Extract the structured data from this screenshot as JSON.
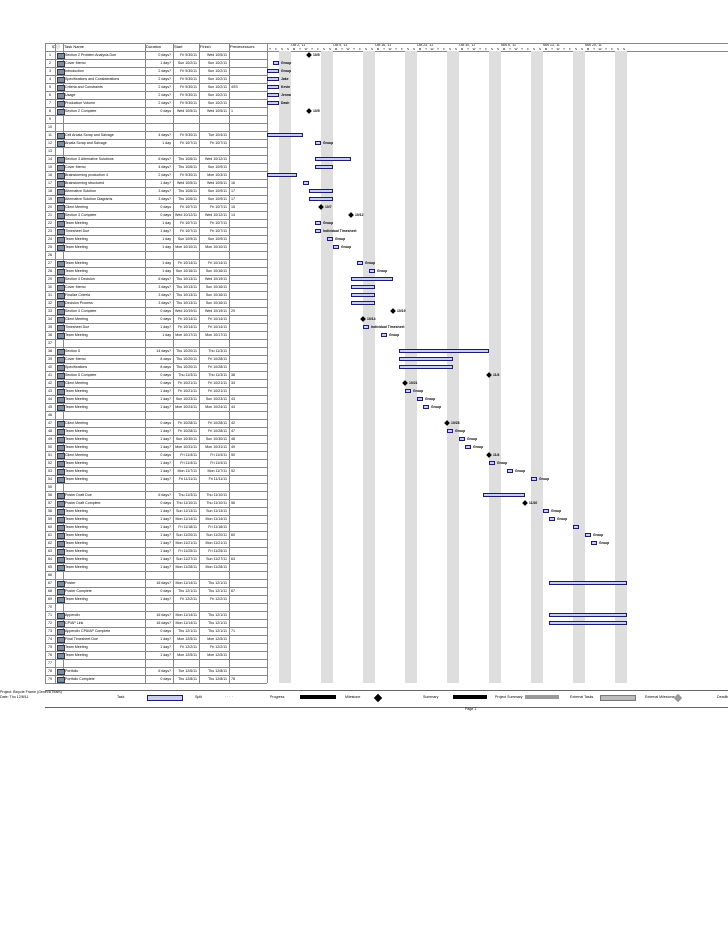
{
  "header": {
    "cols": [
      "ID",
      "Task Name",
      "Duration",
      "Start",
      "Finish",
      "Predecessors"
    ],
    "weeks": [
      "Oct 2, '11",
      "Oct 9, '11",
      "Oct 16, '11",
      "Oct 23, '11",
      "Oct 30, '11",
      "Nov 6, '11",
      "Nov 13, '11",
      "Nov 20, '11"
    ],
    "days": [
      "T",
      "F",
      "S",
      "S",
      "M",
      "T",
      "W",
      "T",
      "F",
      "S",
      "S",
      "M",
      "T",
      "W",
      "T",
      "F",
      "S",
      "S",
      "M",
      "T",
      "W",
      "T",
      "F",
      "S",
      "S",
      "M",
      "T",
      "W",
      "T",
      "F",
      "S",
      "S",
      "M",
      "T",
      "W",
      "T",
      "F",
      "S",
      "S",
      "M",
      "T",
      "W",
      "T",
      "F",
      "S",
      "S",
      "M",
      "T",
      "W",
      "T",
      "F",
      "S",
      "S",
      "M",
      "T",
      "W",
      "T",
      "F",
      "S",
      "S"
    ]
  },
  "rows": [
    {
      "id": "1",
      "name": "Section 2 Problem Analysis Due",
      "dur": "0 days?",
      "start": "Fri 9/30/11",
      "finish": "Wed 10/5/11",
      "pred": ""
    },
    {
      "id": "2",
      "name": "Cover Memo",
      "dur": "1 day?",
      "start": "Sun 10/2/11",
      "finish": "Sun 10/2/11",
      "pred": ""
    },
    {
      "id": "3",
      "name": "Introduction",
      "dur": "2 days?",
      "start": "Fri 9/30/11",
      "finish": "Sun 10/2/11",
      "pred": ""
    },
    {
      "id": "4",
      "name": "Specifications and Considerations",
      "dur": "2 days?",
      "start": "Fri 9/30/11",
      "finish": "Sun 10/2/11",
      "pred": ""
    },
    {
      "id": "5",
      "name": "Criteria and Constraints",
      "dur": "2 days?",
      "start": "Fri 9/30/11",
      "finish": "Sun 10/2/11",
      "pred": "4SS"
    },
    {
      "id": "6",
      "name": "Usage",
      "dur": "2 days?",
      "start": "Fri 9/30/11",
      "finish": "Sun 10/2/11",
      "pred": ""
    },
    {
      "id": "7",
      "name": "Production Volume",
      "dur": "2 days?",
      "start": "Fri 9/30/11",
      "finish": "Sun 10/2/11",
      "pred": ""
    },
    {
      "id": "8",
      "name": "Section 2 Complete",
      "dur": "0 days",
      "start": "Wed 10/5/11",
      "finish": "Wed 10/5/11",
      "pred": "1"
    },
    {
      "id": "9",
      "name": "",
      "dur": "",
      "start": "",
      "finish": "",
      "pred": ""
    },
    {
      "id": "10",
      "name": "",
      "dur": "",
      "start": "",
      "finish": "",
      "pred": ""
    },
    {
      "id": "11",
      "name": "Cell Arcata Scrap and Salvage",
      "dur": "4 days?",
      "start": "Fri 9/30/11",
      "finish": "Tue 10/4/11",
      "pred": ""
    },
    {
      "id": "12",
      "name": "Arcata Scrap and Salvage",
      "dur": "1 day",
      "start": "Fri 10/7/11",
      "finish": "Fri 10/7/11",
      "pred": ""
    },
    {
      "id": "13",
      "name": "",
      "dur": "",
      "start": "",
      "finish": "",
      "pred": ""
    },
    {
      "id": "14",
      "name": "Section 3 Alternative Solutions",
      "dur": "6 days?",
      "start": "Thu 10/6/11",
      "finish": "Wed 10/12/11",
      "pred": ""
    },
    {
      "id": "15",
      "name": "Cover Memo",
      "dur": "4 days?",
      "start": "Thu 10/6/11",
      "finish": "Sun 10/9/11",
      "pred": ""
    },
    {
      "id": "16",
      "name": "Brainstorming production 4",
      "dur": "2 days?",
      "start": "Fri 9/30/11",
      "finish": "Mon 10/3/11",
      "pred": ""
    },
    {
      "id": "17",
      "name": "Brainstorming structured",
      "dur": "1 day?",
      "start": "Wed 10/5/11",
      "finish": "Wed 10/5/11",
      "pred": "16"
    },
    {
      "id": "18",
      "name": "Alternative Solution",
      "dur": "3 days?",
      "start": "Thu 10/6/11",
      "finish": "Sun 10/9/11",
      "pred": "17"
    },
    {
      "id": "19",
      "name": "Alternative Solution Diagrams",
      "dur": "3 days?",
      "start": "Thu 10/6/11",
      "finish": "Sun 10/9/11",
      "pred": "17"
    },
    {
      "id": "20",
      "name": "Client Meeting",
      "dur": "0 days",
      "start": "Fri 10/7/11",
      "finish": "Fri 10/7/11",
      "pred": "15"
    },
    {
      "id": "21",
      "name": "Section 3 Complete",
      "dur": "0 days",
      "start": "Wed 10/12/11",
      "finish": "Wed 10/12/11",
      "pred": "14"
    },
    {
      "id": "22",
      "name": "Team Meeting",
      "dur": "1 day",
      "start": "Fri 10/7/11",
      "finish": "Fri 10/7/11",
      "pred": ""
    },
    {
      "id": "23",
      "name": "Timesheet Due",
      "dur": "1 day?",
      "start": "Fri 10/7/11",
      "finish": "Fri 10/7/11",
      "pred": ""
    },
    {
      "id": "24",
      "name": "Team Meeting",
      "dur": "1 day",
      "start": "Sun 10/9/11",
      "finish": "Sun 10/9/11",
      "pred": ""
    },
    {
      "id": "25",
      "name": "Team Meeting",
      "dur": "1 day",
      "start": "Mon 10/10/11",
      "finish": "Mon 10/10/11",
      "pred": ""
    },
    {
      "id": "26",
      "name": "",
      "dur": "",
      "start": "",
      "finish": "",
      "pred": ""
    },
    {
      "id": "27",
      "name": "Team Meeting",
      "dur": "1 day",
      "start": "Fri 10/14/11",
      "finish": "Fri 10/14/11",
      "pred": ""
    },
    {
      "id": "28",
      "name": "Team Meeting",
      "dur": "1 day",
      "start": "Sun 10/16/11",
      "finish": "Sun 10/16/11",
      "pred": ""
    },
    {
      "id": "29",
      "name": "Section 4 Decision",
      "dur": "6 days?",
      "start": "Thu 10/13/11",
      "finish": "Wed 10/19/11",
      "pred": ""
    },
    {
      "id": "30",
      "name": "Cover Memo",
      "dur": "3 days?",
      "start": "Thu 10/13/11",
      "finish": "Sun 10/16/11",
      "pred": ""
    },
    {
      "id": "31",
      "name": "Finalize Criteria",
      "dur": "3 days?",
      "start": "Thu 10/13/11",
      "finish": "Sun 10/16/11",
      "pred": ""
    },
    {
      "id": "32",
      "name": "Decision Process",
      "dur": "3 days?",
      "start": "Thu 10/13/11",
      "finish": "Sun 10/16/11",
      "pred": ""
    },
    {
      "id": "33",
      "name": "Section 4 Complete",
      "dur": "0 days",
      "start": "Wed 10/19/11",
      "finish": "Wed 10/19/11",
      "pred": "29"
    },
    {
      "id": "34",
      "name": "Client Meeting",
      "dur": "0 days",
      "start": "Fri 10/14/11",
      "finish": "Fri 10/14/11",
      "pred": ""
    },
    {
      "id": "35",
      "name": "Timesheet Due",
      "dur": "1 day?",
      "start": "Fri 10/14/11",
      "finish": "Fri 10/14/11",
      "pred": ""
    },
    {
      "id": "36",
      "name": "Team Meeting",
      "dur": "1 day",
      "start": "Mon 10/17/11",
      "finish": "Mon 10/17/11",
      "pred": ""
    },
    {
      "id": "37",
      "name": "",
      "dur": "",
      "start": "",
      "finish": "",
      "pred": ""
    },
    {
      "id": "38",
      "name": "Section 5",
      "dur": "14 days?",
      "start": "Thu 10/20/11",
      "finish": "Thu 11/3/11",
      "pred": ""
    },
    {
      "id": "39",
      "name": "Cover Memo",
      "dur": "8 days",
      "start": "Thu 10/20/11",
      "finish": "Fri 10/28/11",
      "pred": ""
    },
    {
      "id": "40",
      "name": "Specifications",
      "dur": "8 days",
      "start": "Thu 10/20/11",
      "finish": "Fri 10/28/11",
      "pred": ""
    },
    {
      "id": "41",
      "name": "Section 5 Complete",
      "dur": "0 days",
      "start": "Thu 11/3/11",
      "finish": "Thu 11/3/11",
      "pred": "38"
    },
    {
      "id": "42",
      "name": "Client Meeting",
      "dur": "0 days",
      "start": "Fri 10/21/11",
      "finish": "Fri 10/21/11",
      "pred": "34"
    },
    {
      "id": "43",
      "name": "Team Meeting",
      "dur": "1 day?",
      "start": "Fri 10/21/11",
      "finish": "Fri 10/21/11",
      "pred": ""
    },
    {
      "id": "44",
      "name": "Team Meeting",
      "dur": "1 day?",
      "start": "Sun 10/23/11",
      "finish": "Sun 10/23/11",
      "pred": "43"
    },
    {
      "id": "45",
      "name": "Team Meeting",
      "dur": "1 day?",
      "start": "Mon 10/24/11",
      "finish": "Mon 10/24/11",
      "pred": "44"
    },
    {
      "id": "46",
      "name": "",
      "dur": "",
      "start": "",
      "finish": "",
      "pred": ""
    },
    {
      "id": "47",
      "name": "Client Meeting",
      "dur": "0 days",
      "start": "Fri 10/28/11",
      "finish": "Fri 10/28/11",
      "pred": "42"
    },
    {
      "id": "48",
      "name": "Team Meeting",
      "dur": "1 day?",
      "start": "Fri 10/28/11",
      "finish": "Fri 10/28/11",
      "pred": "47"
    },
    {
      "id": "49",
      "name": "Team Meeting",
      "dur": "1 day?",
      "start": "Sun 10/30/11",
      "finish": "Sun 10/30/11",
      "pred": "48"
    },
    {
      "id": "50",
      "name": "Team Meeting",
      "dur": "1 day?",
      "start": "Mon 10/31/11",
      "finish": "Mon 10/31/11",
      "pred": "49"
    },
    {
      "id": "51",
      "name": "Client Meeting",
      "dur": "0 days",
      "start": "Fri 11/4/11",
      "finish": "Fri 11/4/11",
      "pred": "50"
    },
    {
      "id": "52",
      "name": "Team Meeting",
      "dur": "1 day?",
      "start": "Fri 11/4/11",
      "finish": "Fri 11/4/11",
      "pred": ""
    },
    {
      "id": "53",
      "name": "Team Meeting",
      "dur": "1 day?",
      "start": "Mon 11/7/11",
      "finish": "Mon 11/7/11",
      "pred": "52"
    },
    {
      "id": "54",
      "name": "Team Meeting",
      "dur": "1 day?",
      "start": "Fri 11/11/11",
      "finish": "Fri 11/11/11",
      "pred": ""
    },
    {
      "id": "55",
      "name": "",
      "dur": "",
      "start": "",
      "finish": "",
      "pred": ""
    },
    {
      "id": "56",
      "name": "Poster Draft Due",
      "dur": "6 days?",
      "start": "Thu 11/3/11",
      "finish": "Thu 11/10/11",
      "pred": ""
    },
    {
      "id": "57",
      "name": "Poster Draft Complete",
      "dur": "0 days",
      "start": "Thu 11/10/11",
      "finish": "Thu 11/10/11",
      "pred": "56"
    },
    {
      "id": "58",
      "name": "Team Meeting",
      "dur": "1 day?",
      "start": "Sun 11/13/11",
      "finish": "Sun 11/13/11",
      "pred": ""
    },
    {
      "id": "59",
      "name": "Team Meeting",
      "dur": "1 day?",
      "start": "Mon 11/14/11",
      "finish": "Mon 11/14/11",
      "pred": ""
    },
    {
      "id": "60",
      "name": "Team Meeting",
      "dur": "1 day?",
      "start": "Fri 11/18/11",
      "finish": "Fri 11/18/11",
      "pred": ""
    },
    {
      "id": "61",
      "name": "Team Meeting",
      "dur": "1 day?",
      "start": "Sun 11/20/11",
      "finish": "Sun 11/20/11",
      "pred": "60"
    },
    {
      "id": "62",
      "name": "Team Meeting",
      "dur": "1 day?",
      "start": "Mon 11/21/11",
      "finish": "Mon 11/21/11",
      "pred": ""
    },
    {
      "id": "63",
      "name": "Team Meeting",
      "dur": "1 day?",
      "start": "Fri 11/25/11",
      "finish": "Fri 11/25/11",
      "pred": ""
    },
    {
      "id": "64",
      "name": "Team Meeting",
      "dur": "1 day?",
      "start": "Sun 11/27/11",
      "finish": "Sun 11/27/11",
      "pred": "63"
    },
    {
      "id": "65",
      "name": "Team Meeting",
      "dur": "1 day?",
      "start": "Mon 11/28/11",
      "finish": "Mon 11/28/11",
      "pred": ""
    },
    {
      "id": "66",
      "name": "",
      "dur": "",
      "start": "",
      "finish": "",
      "pred": ""
    },
    {
      "id": "67",
      "name": "Poster",
      "dur": "16 days?",
      "start": "Mon 11/14/11",
      "finish": "Thu 12/1/11",
      "pred": ""
    },
    {
      "id": "68",
      "name": "Poster Complete",
      "dur": "0 days",
      "start": "Thu 12/1/11",
      "finish": "Thu 12/1/11",
      "pred": "67"
    },
    {
      "id": "69",
      "name": "Team Meeting",
      "dur": "1 day?",
      "start": "Fri 12/2/11",
      "finish": "Fri 12/2/11",
      "pred": ""
    },
    {
      "id": "70",
      "name": "",
      "dur": "",
      "start": "",
      "finish": "",
      "pred": ""
    },
    {
      "id": "71",
      "name": "Appendix",
      "dur": "16 days?",
      "start": "Mon 11/14/11",
      "finish": "Thu 12/1/11",
      "pred": ""
    },
    {
      "id": "72",
      "name": "CP/AP Link",
      "dur": "16 days?",
      "start": "Mon 11/14/11",
      "finish": "Thu 12/1/11",
      "pred": ""
    },
    {
      "id": "73",
      "name": "Appendix CPA/AP Complete",
      "dur": "0 days",
      "start": "Thu 12/1/11",
      "finish": "Thu 12/1/11",
      "pred": "71"
    },
    {
      "id": "74",
      "name": "Final Timesheet Due",
      "dur": "1 day?",
      "start": "Mon 12/5/11",
      "finish": "Mon 12/5/11",
      "pred": ""
    },
    {
      "id": "75",
      "name": "Team Meeting",
      "dur": "1 day?",
      "start": "Fri 12/2/11",
      "finish": "Fri 12/2/11",
      "pred": ""
    },
    {
      "id": "76",
      "name": "Team Meeting",
      "dur": "1 day?",
      "start": "Mon 12/5/11",
      "finish": "Mon 12/5/11",
      "pred": ""
    },
    {
      "id": "77",
      "name": "",
      "dur": "",
      "start": "",
      "finish": "",
      "pred": ""
    },
    {
      "id": "78",
      "name": "Portfolio",
      "dur": "6 days?",
      "start": "Tue 12/6/11",
      "finish": "Thu 12/8/11",
      "pred": ""
    },
    {
      "id": "79",
      "name": "Portfolio Complete",
      "dur": "0 days",
      "start": "Thu 12/8/11",
      "finish": "Thu 12/8/11",
      "pred": "78"
    }
  ],
  "gantt": [
    {
      "row": 0,
      "type": "ms",
      "day": 7,
      "label": "10/5"
    },
    {
      "row": 1,
      "type": "bar",
      "s": 1,
      "e": 2,
      "label": "Group"
    },
    {
      "row": 2,
      "type": "bar",
      "s": 0,
      "e": 2,
      "label": "Group"
    },
    {
      "row": 3,
      "type": "bar",
      "s": 0,
      "e": 2,
      "label": "Jake"
    },
    {
      "row": 4,
      "type": "bar",
      "s": 0,
      "e": 2,
      "label": "Kevin"
    },
    {
      "row": 5,
      "type": "bar",
      "s": 0,
      "e": 2,
      "label": "Jenna"
    },
    {
      "row": 6,
      "type": "bar",
      "s": 0,
      "e": 2,
      "label": "Dash"
    },
    {
      "row": 7,
      "type": "ms",
      "day": 7,
      "label": "10/5"
    },
    {
      "row": 10,
      "type": "bar",
      "s": 0,
      "e": 6,
      "label": ""
    },
    {
      "row": 11,
      "type": "bar",
      "s": 8,
      "e": 9,
      "label": "Group"
    },
    {
      "row": 13,
      "type": "bar",
      "s": 8,
      "e": 14,
      "label": ""
    },
    {
      "row": 14,
      "type": "bar",
      "s": 8,
      "e": 11,
      "label": ""
    },
    {
      "row": 15,
      "type": "bar",
      "s": 0,
      "e": 5,
      "label": ""
    },
    {
      "row": 16,
      "type": "bar",
      "s": 6,
      "e": 7,
      "label": ""
    },
    {
      "row": 17,
      "type": "bar",
      "s": 7,
      "e": 11,
      "label": ""
    },
    {
      "row": 18,
      "type": "bar",
      "s": 7,
      "e": 11,
      "label": ""
    },
    {
      "row": 19,
      "type": "ms",
      "day": 9,
      "label": "10/7"
    },
    {
      "row": 20,
      "type": "ms",
      "day": 14,
      "label": "10/12"
    },
    {
      "row": 21,
      "type": "bar",
      "s": 8,
      "e": 9,
      "label": "Group"
    },
    {
      "row": 22,
      "type": "bar",
      "s": 8,
      "e": 9,
      "label": "Individual Timesheet"
    },
    {
      "row": 23,
      "type": "bar",
      "s": 10,
      "e": 11,
      "label": "Group"
    },
    {
      "row": 24,
      "type": "bar",
      "s": 11,
      "e": 12,
      "label": "Group"
    },
    {
      "row": 26,
      "type": "bar",
      "s": 15,
      "e": 16,
      "label": "Group"
    },
    {
      "row": 27,
      "type": "bar",
      "s": 17,
      "e": 18,
      "label": "Group"
    },
    {
      "row": 28,
      "type": "bar",
      "s": 14,
      "e": 21,
      "label": ""
    },
    {
      "row": 29,
      "type": "bar",
      "s": 14,
      "e": 18,
      "label": ""
    },
    {
      "row": 30,
      "type": "bar",
      "s": 14,
      "e": 18,
      "label": ""
    },
    {
      "row": 31,
      "type": "bar",
      "s": 14,
      "e": 18,
      "label": ""
    },
    {
      "row": 32,
      "type": "ms",
      "day": 21,
      "label": "10/19"
    },
    {
      "row": 33,
      "type": "ms",
      "day": 16,
      "label": "10/14"
    },
    {
      "row": 34,
      "type": "bar",
      "s": 16,
      "e": 17,
      "label": "Individual Timesheet"
    },
    {
      "row": 35,
      "type": "bar",
      "s": 19,
      "e": 20,
      "label": "Group"
    },
    {
      "row": 37,
      "type": "bar",
      "s": 22,
      "e": 37,
      "label": ""
    },
    {
      "row": 38,
      "type": "bar",
      "s": 22,
      "e": 31,
      "label": ""
    },
    {
      "row": 39,
      "type": "bar",
      "s": 22,
      "e": 31,
      "label": ""
    },
    {
      "row": 40,
      "type": "ms",
      "day": 37,
      "label": "11/3"
    },
    {
      "row": 41,
      "type": "ms",
      "day": 23,
      "label": "10/21"
    },
    {
      "row": 42,
      "type": "bar",
      "s": 23,
      "e": 24,
      "label": "Group"
    },
    {
      "row": 43,
      "type": "bar",
      "s": 25,
      "e": 26,
      "label": "Group"
    },
    {
      "row": 44,
      "type": "bar",
      "s": 26,
      "e": 27,
      "label": "Group"
    },
    {
      "row": 46,
      "type": "ms",
      "day": 30,
      "label": "10/28"
    },
    {
      "row": 47,
      "type": "bar",
      "s": 30,
      "e": 31,
      "label": "Group"
    },
    {
      "row": 48,
      "type": "bar",
      "s": 32,
      "e": 33,
      "label": "Group"
    },
    {
      "row": 49,
      "type": "bar",
      "s": 33,
      "e": 34,
      "label": "Group"
    },
    {
      "row": 50,
      "type": "ms",
      "day": 37,
      "label": "11/4"
    },
    {
      "row": 51,
      "type": "bar",
      "s": 37,
      "e": 38,
      "label": "Group"
    },
    {
      "row": 52,
      "type": "bar",
      "s": 40,
      "e": 41,
      "label": "Group"
    },
    {
      "row": 53,
      "type": "bar",
      "s": 44,
      "e": 45,
      "label": "Group"
    },
    {
      "row": 55,
      "type": "bar",
      "s": 36,
      "e": 43,
      "label": ""
    },
    {
      "row": 56,
      "type": "ms",
      "day": 43,
      "label": "11/10"
    },
    {
      "row": 57,
      "type": "bar",
      "s": 46,
      "e": 47,
      "label": "Group"
    },
    {
      "row": 58,
      "type": "bar",
      "s": 47,
      "e": 48,
      "label": "Group"
    },
    {
      "row": 59,
      "type": "bar",
      "s": 51,
      "e": 52,
      "label": ""
    },
    {
      "row": 60,
      "type": "bar",
      "s": 53,
      "e": 54,
      "label": "Group"
    },
    {
      "row": 61,
      "type": "bar",
      "s": 54,
      "e": 55,
      "label": "Group"
    },
    {
      "row": 66,
      "type": "bar",
      "s": 47,
      "e": 60,
      "label": ""
    },
    {
      "row": 70,
      "type": "bar",
      "s": 47,
      "e": 60,
      "label": ""
    },
    {
      "row": 71,
      "type": "bar",
      "s": 47,
      "e": 60,
      "label": ""
    }
  ],
  "legend": {
    "project": "Project: Bicycle Frame (Geneva Team)",
    "date": "Date: Thu 12/8/11",
    "items": [
      "Task",
      "Split",
      "Progress",
      "Milestone",
      "Summary",
      "Project Summary",
      "External Tasks",
      "External Milestone",
      "Deadline"
    ]
  },
  "page": "Page 1"
}
